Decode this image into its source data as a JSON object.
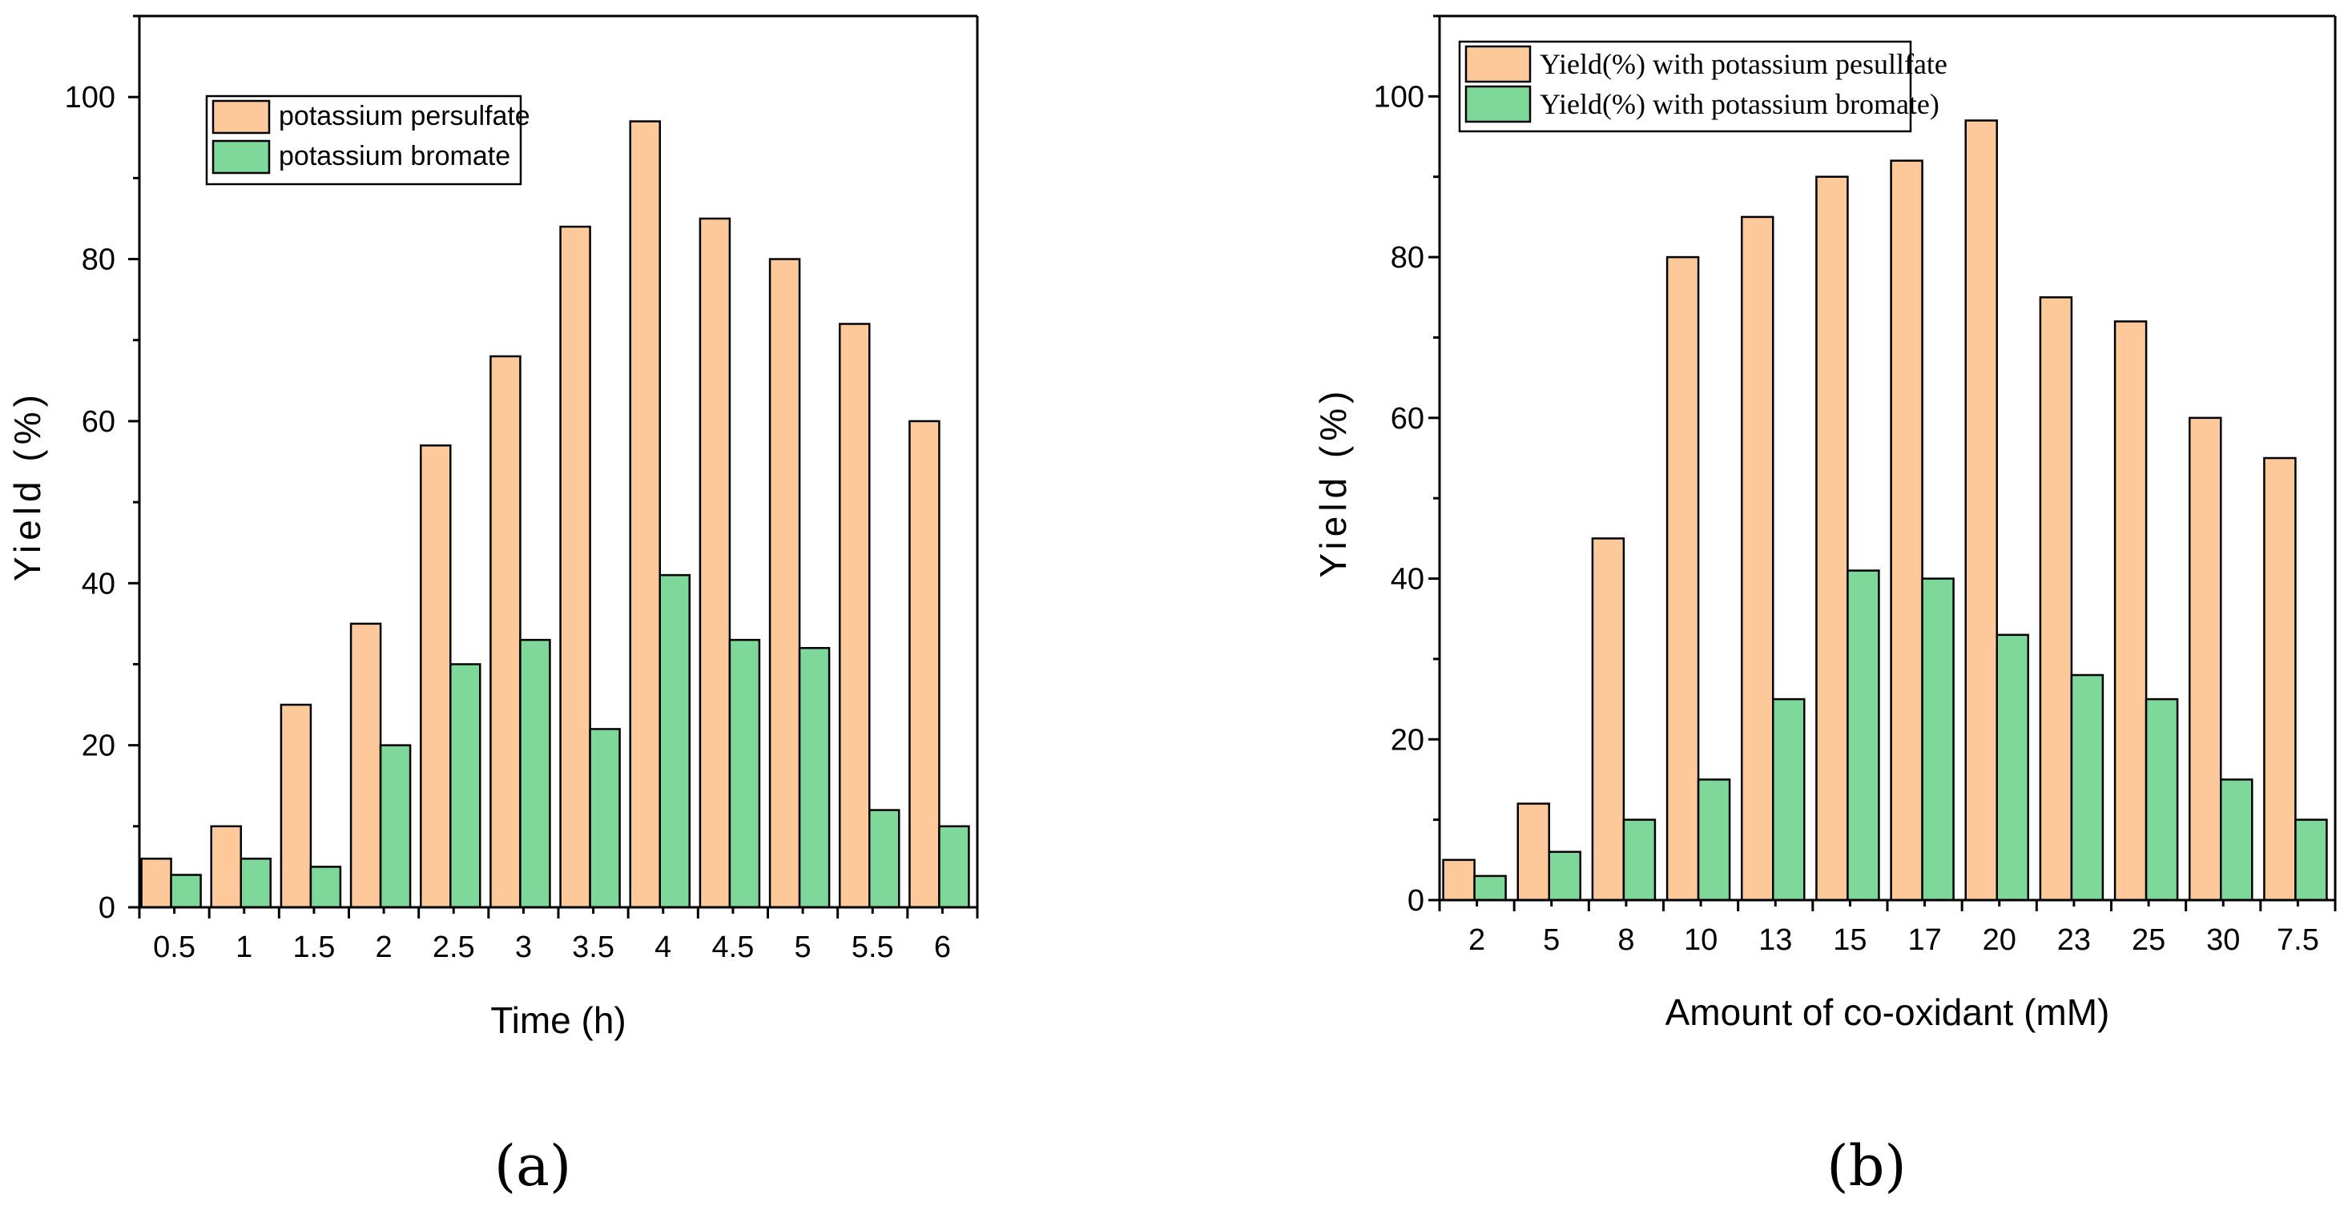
{
  "chart_data": [
    {
      "type": "bar",
      "panel_label": "(a)",
      "xlabel": "Time (h)",
      "ylabel": "Yield (%)",
      "ylim": [
        0,
        110
      ],
      "yticks": [
        0,
        20,
        40,
        60,
        80,
        100
      ],
      "categories": [
        "0.5",
        "1",
        "1.5",
        "2",
        "2.5",
        "3",
        "3.5",
        "4",
        "4.5",
        "5",
        "5.5",
        "6"
      ],
      "legend_position": "top-left",
      "series": [
        {
          "name": "potassium persulfate",
          "color": "#fdc99a",
          "values": [
            6,
            10,
            25,
            35,
            57,
            68,
            84,
            97,
            85,
            80,
            72,
            60
          ]
        },
        {
          "name": "potassium bromate",
          "color": "#7ed89a",
          "values": [
            4,
            6,
            5,
            20,
            30,
            33,
            22,
            41,
            33,
            32,
            12,
            10
          ]
        }
      ]
    },
    {
      "type": "bar",
      "panel_label": "(b)",
      "xlabel": "Amount of co-oxidant (mM)",
      "ylabel": "Yield (%)",
      "ylim": [
        0,
        110
      ],
      "yticks": [
        0,
        20,
        40,
        60,
        80,
        100
      ],
      "categories": [
        "2",
        "5",
        "8",
        "10",
        "13",
        "15",
        "17",
        "20",
        "23",
        "25",
        "30",
        "7.5"
      ],
      "legend_position": "top-left",
      "series": [
        {
          "name": "Yield(%) with potassium pesullfate",
          "color": "#fdc99a",
          "values": [
            5,
            12,
            45,
            80,
            85,
            90,
            92,
            97,
            75,
            72,
            60,
            55
          ]
        },
        {
          "name": "Yield(%) with potassium bromate)",
          "color": "#7ed89a",
          "values": [
            3,
            6,
            10,
            15,
            25,
            41,
            40,
            33,
            28,
            25,
            15,
            10
          ]
        }
      ]
    }
  ]
}
